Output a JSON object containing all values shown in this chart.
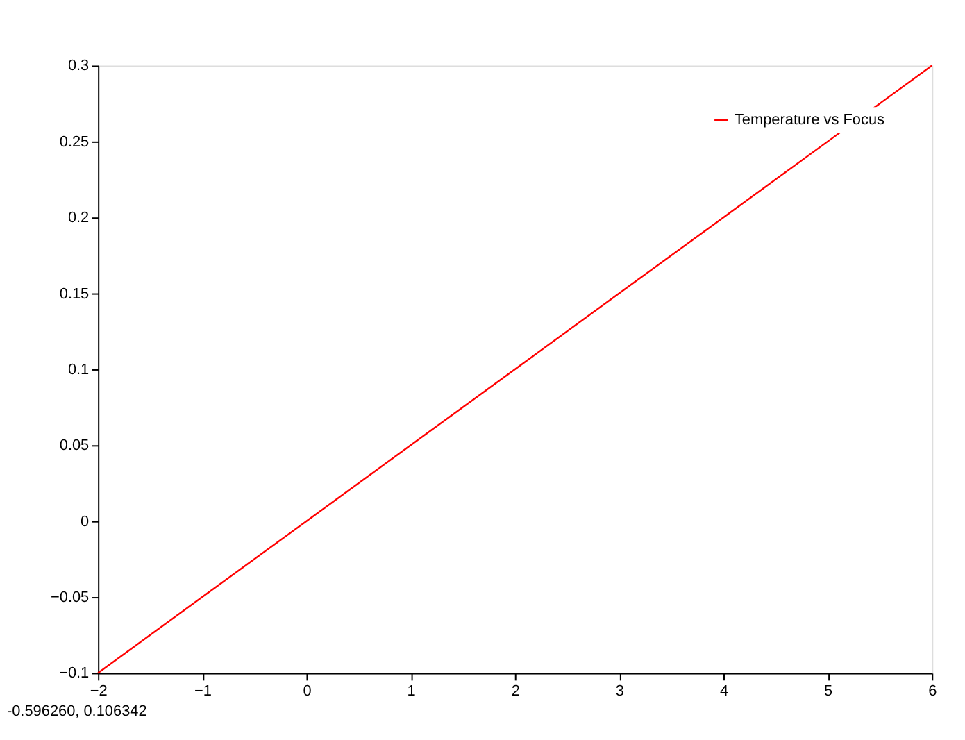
{
  "chart_data": {
    "type": "line",
    "x": [
      -2,
      -1,
      0,
      1,
      2,
      3,
      4,
      5,
      6
    ],
    "series": [
      {
        "name": "Temperature vs Focus",
        "color": "#ff0000",
        "values": [
          -0.1,
          -0.05,
          0,
          0.05,
          0.1,
          0.15,
          0.2,
          0.25,
          0.3
        ]
      }
    ],
    "xlim": [
      -2,
      6
    ],
    "xticks": [
      -2,
      -1,
      0,
      1,
      2,
      3,
      4,
      5,
      6
    ],
    "ylim": [
      -0.1,
      0.3
    ],
    "yticks": [
      -0.1,
      -0.05,
      0,
      0.05,
      0.1,
      0.15,
      0.2,
      0.25,
      0.3
    ],
    "grid": false,
    "legend": "top right",
    "marker": "none",
    "line_style": "solid",
    "annotations": [
      "-0.596260,  0.106342"
    ]
  }
}
